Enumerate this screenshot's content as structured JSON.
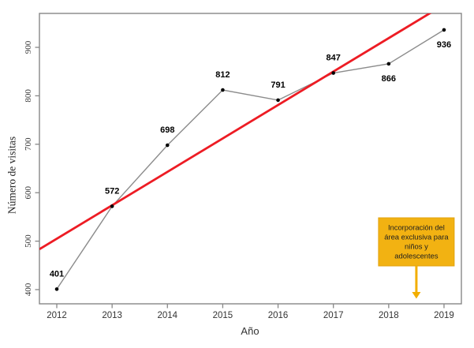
{
  "chart_data": {
    "type": "line",
    "title": "",
    "xlabel": "Año",
    "ylabel": "Número de visitas",
    "x": [
      2012,
      2013,
      2014,
      2015,
      2016,
      2017,
      2018,
      2019
    ],
    "series": [
      {
        "name": "Número de visitas",
        "values": [
          401,
          572,
          698,
          812,
          791,
          847,
          866,
          936
        ],
        "line_color": "#8c8c8c",
        "point_color": "#000000",
        "label_positions": [
          "above",
          "above",
          "above",
          "above",
          "above",
          "above",
          "below",
          "below"
        ]
      }
    ],
    "trend": {
      "type": "linear",
      "value_at_2012": 505,
      "slope_per_year": 69,
      "color": "#ed1c24"
    },
    "yticks": [
      400,
      500,
      600,
      700,
      800,
      900
    ],
    "ylim": [
      371,
      970
    ],
    "xlim": [
      2011.7,
      2019.3
    ],
    "grid": false,
    "legend": null
  },
  "annotation": {
    "lines": [
      "Incorporación del",
      "área exclusiva para",
      "niños y",
      "adolescentes"
    ],
    "box_fill": "#f2b212",
    "box_border": "#e2a30f",
    "text_color": "#1f1f1f",
    "arrow_color": "#f2ae00",
    "arrow_year": 2018.5
  },
  "colors": {
    "axis": "#878787",
    "tick_text": "#3d3d3d",
    "point_label_text": "#000000",
    "background": "#ffffff"
  }
}
